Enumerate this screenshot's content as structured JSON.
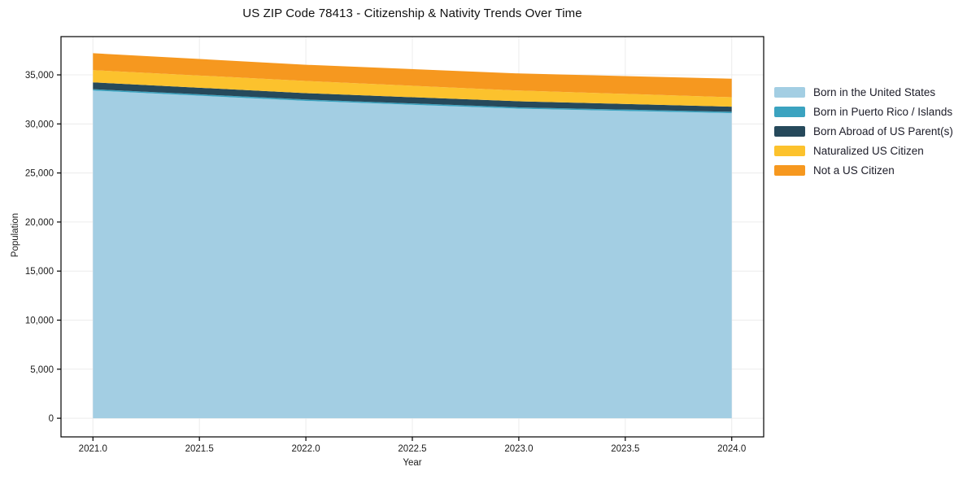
{
  "figure": {
    "title": "US ZIP Code 78413 - Citizenship & Nativity Trends Over Time",
    "xlabel": "Year",
    "ylabel": "Population"
  },
  "chart_data": {
    "type": "area",
    "stacked": true,
    "title": "US ZIP Code 78413 - Citizenship & Nativity Trends Over Time",
    "xlabel": "Year",
    "ylabel": "Population",
    "x": [
      2021,
      2022,
      2023,
      2024
    ],
    "series": [
      {
        "name": "Born in the United States",
        "color": "#a3cee3",
        "values": [
          33400,
          32350,
          31550,
          31100
        ]
      },
      {
        "name": "Born in Puerto Rico / Islands",
        "color": "#3ba3c0",
        "values": [
          140,
          140,
          135,
          140
        ]
      },
      {
        "name": "Born Abroad of US Parent(s)",
        "color": "#26495b",
        "values": [
          700,
          650,
          620,
          520
        ]
      },
      {
        "name": "Naturalized US Citizen",
        "color": "#fcc22d",
        "values": [
          1240,
          1240,
          1100,
          965
        ]
      },
      {
        "name": "Not a US Citizen",
        "color": "#f6981f",
        "values": [
          1730,
          1650,
          1740,
          1885
        ]
      }
    ],
    "xlim": [
      2020.85,
      2024.15
    ],
    "ylim": [
      -1900,
      38900
    ],
    "xticks": {
      "values": [
        2021.0,
        2021.5,
        2022.0,
        2022.5,
        2023.0,
        2023.5,
        2024.0
      ],
      "labels": [
        "2021.0",
        "2021.5",
        "2022.0",
        "2022.5",
        "2023.0",
        "2023.5",
        "2024.0"
      ]
    },
    "yticks": {
      "values": [
        0,
        5000,
        10000,
        15000,
        20000,
        25000,
        30000,
        35000
      ],
      "labels": [
        "0",
        "5,000",
        "10,000",
        "15,000",
        "20,000",
        "25,000",
        "30,000",
        "35,000"
      ]
    },
    "grid": true,
    "legend_position": "right-outside"
  }
}
